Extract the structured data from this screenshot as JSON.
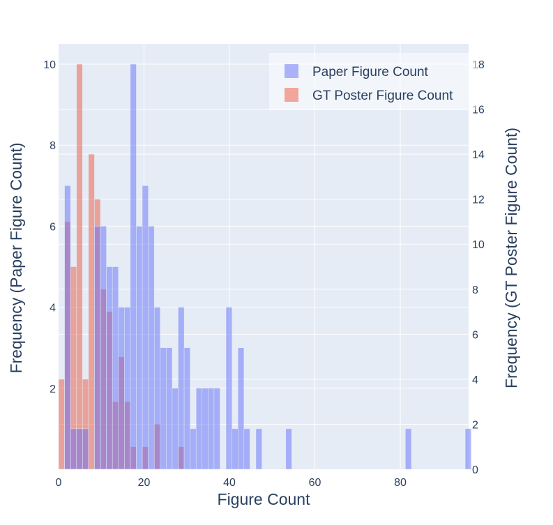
{
  "chart_data": {
    "type": "bar",
    "subtype": "overlaid-histogram-dual-axis",
    "xlabel": "Figure Count",
    "ylabel_left": "Frequency (Paper Figure Count)",
    "ylabel_right": "Frequency (GT Poster Figure Count)",
    "xlim": [
      0,
      96
    ],
    "ylim_left": [
      0,
      10.5
    ],
    "ylim_right": [
      0,
      18.9
    ],
    "x_ticks": [
      0,
      20,
      40,
      60,
      80
    ],
    "y_ticks_left": [
      2,
      4,
      6,
      8,
      10
    ],
    "y_ticks_right": [
      0,
      2,
      4,
      6,
      8,
      10,
      12,
      14,
      16,
      18
    ],
    "bin_width": 1.4,
    "grid": true,
    "legend_position": "top-right",
    "series": [
      {
        "name": "Paper Figure Count",
        "axis": "left",
        "color": "#636efa",
        "opacity": 0.5,
        "bins": [
          {
            "x0": 1.4,
            "count": 7
          },
          {
            "x0": 2.8,
            "count": 1
          },
          {
            "x0": 4.2,
            "count": 1
          },
          {
            "x0": 5.6,
            "count": 1
          },
          {
            "x0": 8.4,
            "count": 6
          },
          {
            "x0": 9.8,
            "count": 6
          },
          {
            "x0": 11.2,
            "count": 5
          },
          {
            "x0": 12.6,
            "count": 5
          },
          {
            "x0": 14.0,
            "count": 4
          },
          {
            "x0": 15.4,
            "count": 4
          },
          {
            "x0": 16.8,
            "count": 10
          },
          {
            "x0": 18.2,
            "count": 6
          },
          {
            "x0": 19.6,
            "count": 7
          },
          {
            "x0": 21.0,
            "count": 6
          },
          {
            "x0": 22.4,
            "count": 4
          },
          {
            "x0": 23.8,
            "count": 3
          },
          {
            "x0": 25.2,
            "count": 3
          },
          {
            "x0": 26.6,
            "count": 2
          },
          {
            "x0": 28.0,
            "count": 4
          },
          {
            "x0": 29.4,
            "count": 3
          },
          {
            "x0": 30.8,
            "count": 1
          },
          {
            "x0": 32.2,
            "count": 2
          },
          {
            "x0": 33.6,
            "count": 2
          },
          {
            "x0": 35.0,
            "count": 2
          },
          {
            "x0": 36.4,
            "count": 2
          },
          {
            "x0": 39.2,
            "count": 4
          },
          {
            "x0": 40.6,
            "count": 1
          },
          {
            "x0": 42.0,
            "count": 3
          },
          {
            "x0": 43.4,
            "count": 1
          },
          {
            "x0": 46.2,
            "count": 1
          },
          {
            "x0": 53.2,
            "count": 1
          },
          {
            "x0": 81.2,
            "count": 1
          },
          {
            "x0": 95.2,
            "count": 1
          }
        ]
      },
      {
        "name": "GT Poster Figure Count",
        "axis": "right",
        "color": "#ef553b",
        "opacity": 0.5,
        "bins": [
          {
            "x0": 0.0,
            "count": 4
          },
          {
            "x0": 1.4,
            "count": 11
          },
          {
            "x0": 2.8,
            "count": 9
          },
          {
            "x0": 4.2,
            "count": 18
          },
          {
            "x0": 5.6,
            "count": 4
          },
          {
            "x0": 7.0,
            "count": 14
          },
          {
            "x0": 8.4,
            "count": 12
          },
          {
            "x0": 9.8,
            "count": 8
          },
          {
            "x0": 11.2,
            "count": 7
          },
          {
            "x0": 12.6,
            "count": 3
          },
          {
            "x0": 14.0,
            "count": 5
          },
          {
            "x0": 15.4,
            "count": 3
          },
          {
            "x0": 16.8,
            "count": 1
          },
          {
            "x0": 19.6,
            "count": 1
          },
          {
            "x0": 22.4,
            "count": 2
          },
          {
            "x0": 28.0,
            "count": 1
          }
        ]
      }
    ]
  }
}
